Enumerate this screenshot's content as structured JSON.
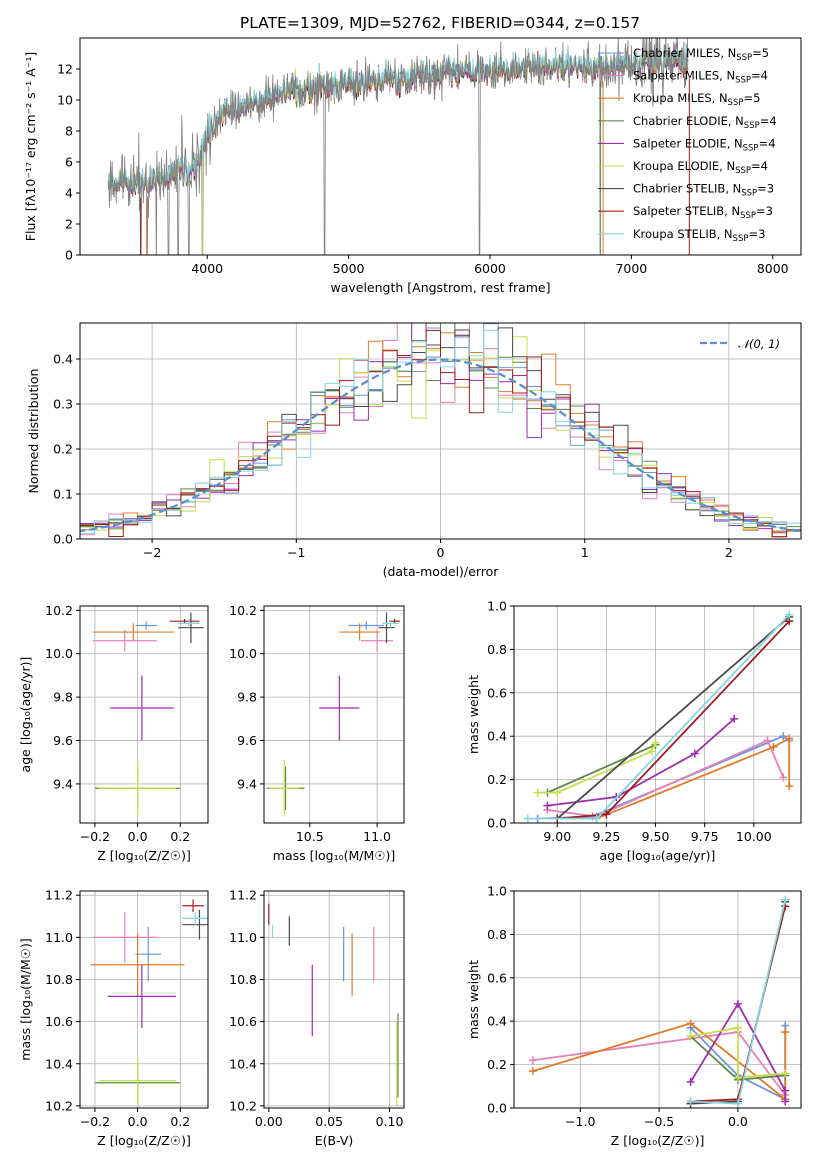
{
  "figure": {
    "title": "PLATE=1309, MJD=52762, FIBERID=0344, z=0.157"
  },
  "colors": {
    "c_miles": "#6d97d6",
    "s_miles": "#e77fb9",
    "k_miles": "#e07b2a",
    "c_elodie": "#5d8a48",
    "s_elodie": "#9b2fae",
    "k_elodie": "#c9dd4e",
    "c_stelib": "#4a4a4a",
    "s_stelib": "#a11c1c",
    "k_stelib": "#85d6e0",
    "gauss": "#5a8fd6",
    "data": "#808080"
  },
  "chart_data": [
    {
      "id": "spectrum",
      "type": "line",
      "xlabel": "wavelength [Angstrom, rest frame]",
      "ylabel": "Flux [fλ10⁻¹⁷ erg cm⁻² s⁻¹ A⁻¹]",
      "xlim": [
        3100,
        8200
      ],
      "ylim": [
        0,
        14
      ],
      "xticks": [
        4000,
        5000,
        6000,
        7000,
        8000
      ],
      "yticks": [
        0,
        2,
        4,
        6,
        8,
        10,
        12
      ],
      "grid": false,
      "legend_position": "right",
      "legend": [
        {
          "label": "Chabrier MILES, N",
          "sub": "SSP",
          "suffix": "=5",
          "color_key": "c_miles"
        },
        {
          "label": "Salpeter MILES, N",
          "sub": "SSP",
          "suffix": "=4",
          "color_key": "s_miles"
        },
        {
          "label": "Kroupa MILES, N",
          "sub": "SSP",
          "suffix": "=5",
          "color_key": "k_miles"
        },
        {
          "label": "Chabrier ELODIE, N",
          "sub": "SSP",
          "suffix": "=4",
          "color_key": "c_elodie"
        },
        {
          "label": "Salpeter ELODIE, N",
          "sub": "SSP",
          "suffix": "=4",
          "color_key": "s_elodie"
        },
        {
          "label": "Kroupa ELODIE, N",
          "sub": "SSP",
          "suffix": "=4",
          "color_key": "k_elodie"
        },
        {
          "label": "Chabrier STELIB, N",
          "sub": "SSP",
          "suffix": "=3",
          "color_key": "c_stelib"
        },
        {
          "label": "Salpeter STELIB, N",
          "sub": "SSP",
          "suffix": "=3",
          "color_key": "s_stelib"
        },
        {
          "label": "Kroupa STELIB, N",
          "sub": "SSP",
          "suffix": "=3",
          "color_key": "k_stelib"
        }
      ],
      "continuum_anchors": [
        [
          3300,
          4.7
        ],
        [
          3600,
          4.7
        ],
        [
          3850,
          5.7
        ],
        [
          3950,
          7.0
        ],
        [
          4100,
          9.2
        ],
        [
          4300,
          9.7
        ],
        [
          4600,
          10.6
        ],
        [
          5000,
          11.1
        ],
        [
          5400,
          11.4
        ],
        [
          5800,
          11.8
        ],
        [
          6300,
          12.1
        ],
        [
          6800,
          12.2
        ],
        [
          7200,
          12.4
        ],
        [
          7400,
          12.4
        ]
      ],
      "deep_lines": [
        3530,
        3575,
        3640,
        3725,
        3795,
        3870,
        3965,
        4830,
        5925,
        6780,
        7410
      ],
      "noisy_region": [
        6900,
        7400
      ]
    },
    {
      "id": "residual_histogram",
      "type": "step",
      "xlabel": "(data-model)/error",
      "ylabel": "Normed distribution",
      "xlim": [
        -2.5,
        2.5
      ],
      "ylim": [
        0,
        0.48
      ],
      "xticks": [
        -2,
        -1,
        0,
        1,
        2
      ],
      "yticks": [
        0,
        0.1,
        0.2,
        0.3,
        0.4
      ],
      "grid": true,
      "legend": [
        {
          "label": "𝒩(0, 1)",
          "color_key": "gauss",
          "style": "dashed"
        }
      ],
      "legend_position": "top-right",
      "bin_width": 0.1
    },
    {
      "id": "age_vs_Z",
      "type": "errorbar",
      "xlabel": "Z [log₁₀(Z/Z☉)]",
      "ylabel": "age  [log₁₀(age/yr)]",
      "xlim": [
        -0.27,
        0.33
      ],
      "ylim": [
        9.22,
        10.22
      ],
      "xticks": [
        -0.2,
        0.0,
        0.2
      ],
      "yticks": [
        9.4,
        9.6,
        9.8,
        10.0,
        10.2
      ],
      "grid": true,
      "points": [
        {
          "x": 0.04,
          "xerr": 0.05,
          "y": 10.13,
          "yerr": 0.02,
          "color_key": "c_miles"
        },
        {
          "x": -0.06,
          "xerr": 0.15,
          "y": 10.06,
          "yerr": 0.05,
          "color_key": "s_miles"
        },
        {
          "x": -0.02,
          "xerr": 0.19,
          "y": 10.1,
          "yerr": 0.04,
          "color_key": "k_miles"
        },
        {
          "x": 0.0,
          "xerr": 0.2,
          "y": 9.38,
          "yerr": 0.1,
          "color_key": "c_elodie"
        },
        {
          "x": 0.02,
          "xerr": 0.15,
          "y": 9.75,
          "yerr": 0.15,
          "color_key": "s_elodie"
        },
        {
          "x": 0.0,
          "xerr": 0.18,
          "y": 9.38,
          "yerr": 0.13,
          "color_key": "k_elodie"
        },
        {
          "x": 0.25,
          "xerr": 0.06,
          "y": 10.12,
          "yerr": 0.07,
          "color_key": "c_stelib"
        },
        {
          "x": 0.22,
          "xerr": 0.07,
          "y": 10.15,
          "yerr": 0.01,
          "color_key": "s_stelib"
        },
        {
          "x": 0.24,
          "xerr": 0.05,
          "y": 10.14,
          "yerr": 0.02,
          "color_key": "k_stelib"
        }
      ]
    },
    {
      "id": "age_vs_mass",
      "type": "errorbar",
      "xlabel": "mass [log₁₀(M/M☉)]",
      "ylabel": "",
      "xlim": [
        10.16,
        11.2
      ],
      "ylim": [
        9.22,
        10.22
      ],
      "xticks": [
        10.5,
        11.0
      ],
      "yticks": [
        9.4,
        9.6,
        9.8,
        10.0,
        10.2
      ],
      "grid": true,
      "points": [
        {
          "x": 10.92,
          "xerr": 0.13,
          "y": 10.13,
          "yerr": 0.02,
          "color_key": "c_miles"
        },
        {
          "x": 11.0,
          "xerr": 0.12,
          "y": 10.06,
          "yerr": 0.05,
          "color_key": "s_miles"
        },
        {
          "x": 10.87,
          "xerr": 0.15,
          "y": 10.1,
          "yerr": 0.04,
          "color_key": "k_miles"
        },
        {
          "x": 10.32,
          "xerr": 0.14,
          "y": 9.38,
          "yerr": 0.1,
          "color_key": "c_elodie"
        },
        {
          "x": 10.72,
          "xerr": 0.15,
          "y": 9.75,
          "yerr": 0.15,
          "color_key": "s_elodie"
        },
        {
          "x": 10.31,
          "xerr": 0.11,
          "y": 9.38,
          "yerr": 0.13,
          "color_key": "k_elodie"
        },
        {
          "x": 11.07,
          "xerr": 0.06,
          "y": 10.12,
          "yerr": 0.07,
          "color_key": "c_stelib"
        },
        {
          "x": 11.13,
          "xerr": 0.04,
          "y": 10.15,
          "yerr": 0.01,
          "color_key": "s_stelib"
        },
        {
          "x": 11.1,
          "xerr": 0.06,
          "y": 10.14,
          "yerr": 0.02,
          "color_key": "k_stelib"
        }
      ]
    },
    {
      "id": "weight_vs_age",
      "type": "line",
      "xlabel": "age  [log₁₀(age/yr)]",
      "ylabel": "mass weight",
      "xlim": [
        8.78,
        10.24
      ],
      "ylim": [
        0,
        1
      ],
      "xticks": [
        9.0,
        9.25,
        9.5,
        9.75,
        10.0
      ],
      "yticks": [
        0.0,
        0.2,
        0.4,
        0.6,
        0.8,
        1.0
      ],
      "grid": true,
      "series": [
        {
          "color_key": "c_miles",
          "x": [
            8.9,
            9.18,
            10.15,
            10.18
          ],
          "y": [
            0.02,
            0.03,
            0.4,
            0.38
          ]
        },
        {
          "color_key": "s_miles",
          "x": [
            8.95,
            9.2,
            10.07,
            10.15
          ],
          "y": [
            0.06,
            0.03,
            0.38,
            0.21
          ]
        },
        {
          "color_key": "k_miles",
          "x": [
            9.0,
            9.2,
            10.1,
            10.18,
            10.18
          ],
          "y": [
            0.02,
            0.02,
            0.35,
            0.39,
            0.17
          ]
        },
        {
          "color_key": "c_elodie",
          "x": [
            8.95,
            9.5
          ],
          "y": [
            0.14,
            0.36
          ]
        },
        {
          "color_key": "s_elodie",
          "x": [
            8.95,
            9.3,
            9.7,
            9.9
          ],
          "y": [
            0.08,
            0.12,
            0.32,
            0.48
          ]
        },
        {
          "color_key": "k_elodie",
          "x": [
            8.9,
            9.0,
            9.48,
            9.5
          ],
          "y": [
            0.14,
            0.14,
            0.33,
            0.37
          ]
        },
        {
          "color_key": "c_stelib",
          "x": [
            9.0,
            10.18
          ],
          "y": [
            0.02,
            0.95
          ]
        },
        {
          "color_key": "s_stelib",
          "x": [
            9.0,
            9.25,
            10.18
          ],
          "y": [
            0.02,
            0.04,
            0.93
          ]
        },
        {
          "color_key": "k_stelib",
          "x": [
            8.85,
            9.2,
            10.18
          ],
          "y": [
            0.02,
            0.02,
            0.96
          ]
        }
      ]
    },
    {
      "id": "mass_vs_Z",
      "type": "errorbar",
      "xlabel": "Z [log₁₀(Z/Z☉)]",
      "ylabel": "mass [log₁₀(M/M☉)]",
      "xlim": [
        -0.27,
        0.33
      ],
      "ylim": [
        10.19,
        11.22
      ],
      "xticks": [
        -0.2,
        0.0,
        0.2
      ],
      "yticks": [
        10.2,
        10.4,
        10.6,
        10.8,
        11.0,
        11.2
      ],
      "grid": true,
      "points": [
        {
          "x": 0.05,
          "xerr": 0.06,
          "y": 10.92,
          "yerr": 0.13,
          "color_key": "c_miles"
        },
        {
          "x": -0.06,
          "xerr": 0.15,
          "y": 11.0,
          "yerr": 0.12,
          "color_key": "s_miles"
        },
        {
          "x": 0.0,
          "xerr": 0.22,
          "y": 10.87,
          "yerr": 0.15,
          "color_key": "k_miles"
        },
        {
          "x": 0.0,
          "xerr": 0.2,
          "y": 10.31,
          "yerr": 0.1,
          "color_key": "c_elodie"
        },
        {
          "x": 0.02,
          "xerr": 0.16,
          "y": 10.72,
          "yerr": 0.15,
          "color_key": "s_elodie"
        },
        {
          "x": 0.0,
          "xerr": 0.18,
          "y": 10.32,
          "yerr": 0.11,
          "color_key": "k_elodie"
        },
        {
          "x": 0.29,
          "xerr": 0.08,
          "y": 11.06,
          "yerr": 0.07,
          "color_key": "c_stelib"
        },
        {
          "x": 0.26,
          "xerr": 0.05,
          "y": 11.15,
          "yerr": 0.03,
          "color_key": "s_stelib"
        },
        {
          "x": 0.27,
          "xerr": 0.06,
          "y": 11.09,
          "yerr": 0.03,
          "color_key": "k_stelib"
        }
      ]
    },
    {
      "id": "mass_vs_ebv",
      "type": "errorbar",
      "xlabel": "E(B-V)",
      "ylabel": "",
      "xlim": [
        -0.004,
        0.112
      ],
      "ylim": [
        10.19,
        11.22
      ],
      "xticks": [
        0.0,
        0.05,
        0.1
      ],
      "yticks": [
        10.2,
        10.4,
        10.6,
        10.8,
        11.0,
        11.2
      ],
      "grid": true,
      "points": [
        {
          "x": 0.062,
          "xerr": 0,
          "y": 10.92,
          "yerr": 0.13,
          "color_key": "c_miles"
        },
        {
          "x": 0.087,
          "xerr": 0,
          "y": 10.92,
          "yerr": 0.13,
          "color_key": "s_miles"
        },
        {
          "x": 0.069,
          "xerr": 0,
          "y": 10.87,
          "yerr": 0.15,
          "color_key": "k_miles"
        },
        {
          "x": 0.107,
          "xerr": 0,
          "y": 10.44,
          "yerr": 0.2,
          "color_key": "c_elodie"
        },
        {
          "x": 0.036,
          "xerr": 0,
          "y": 10.7,
          "yerr": 0.17,
          "color_key": "s_elodie"
        },
        {
          "x": 0.106,
          "xerr": 0,
          "y": 10.4,
          "yerr": 0.2,
          "color_key": "k_elodie"
        },
        {
          "x": 0.017,
          "xerr": 0,
          "y": 11.03,
          "yerr": 0.07,
          "color_key": "c_stelib"
        },
        {
          "x": 0.0,
          "xerr": 0,
          "y": 11.11,
          "yerr": 0.05,
          "color_key": "s_stelib"
        },
        {
          "x": 0.003,
          "xerr": 0,
          "y": 11.03,
          "yerr": 0.03,
          "color_key": "k_stelib"
        }
      ]
    },
    {
      "id": "weight_vs_Z",
      "type": "line",
      "xlabel": "Z [log₁₀(Z/Z☉)]",
      "ylabel": "mass weight",
      "xlim": [
        -1.42,
        0.4
      ],
      "ylim": [
        0,
        1
      ],
      "xticks": [
        -1.0,
        -0.5,
        0.0
      ],
      "yticks": [
        0.0,
        0.2,
        0.4,
        0.6,
        0.8,
        1.0
      ],
      "grid": true,
      "series": [
        {
          "color_key": "c_miles",
          "x": [
            -0.3,
            0.0,
            0.3,
            0.3
          ],
          "y": [
            0.37,
            0.15,
            0.04,
            0.38
          ]
        },
        {
          "color_key": "s_miles",
          "x": [
            -1.3,
            0.0,
            0.3
          ],
          "y": [
            0.22,
            0.35,
            0.06
          ]
        },
        {
          "color_key": "k_miles",
          "x": [
            -1.3,
            -0.3,
            0.3,
            0.3
          ],
          "y": [
            0.17,
            0.39,
            0.04,
            0.35
          ]
        },
        {
          "color_key": "c_elodie",
          "x": [
            -0.3,
            0.0,
            0.3
          ],
          "y": [
            0.33,
            0.13,
            0.15
          ]
        },
        {
          "color_key": "s_elodie",
          "x": [
            -0.3,
            0.0,
            0.3,
            0.3
          ],
          "y": [
            0.12,
            0.48,
            0.08,
            0.03
          ]
        },
        {
          "color_key": "k_elodie",
          "x": [
            -0.3,
            0.0,
            0.0,
            0.3
          ],
          "y": [
            0.33,
            0.37,
            0.14,
            0.16
          ]
        },
        {
          "color_key": "c_stelib",
          "x": [
            -0.3,
            0.0,
            0.3
          ],
          "y": [
            0.02,
            0.03,
            0.95
          ]
        },
        {
          "color_key": "s_stelib",
          "x": [
            -0.3,
            0.0,
            0.3
          ],
          "y": [
            0.03,
            0.04,
            0.93
          ]
        },
        {
          "color_key": "k_stelib",
          "x": [
            -0.3,
            0.0,
            0.3
          ],
          "y": [
            0.03,
            0.02,
            0.96
          ]
        }
      ]
    }
  ]
}
